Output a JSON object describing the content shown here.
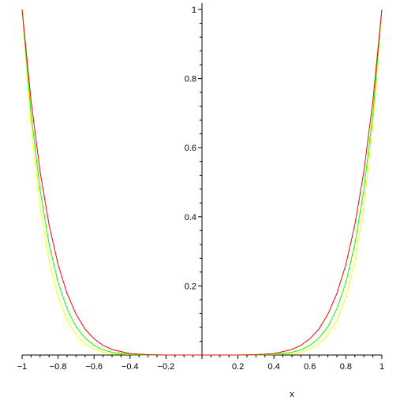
{
  "chart_data": {
    "type": "line",
    "title": "",
    "xlabel": "x",
    "ylabel": "",
    "xlim": [
      -1,
      1
    ],
    "ylim": [
      0,
      1
    ],
    "grid": false,
    "legend": "none",
    "x_ticks": [
      -1,
      -0.8,
      -0.6,
      -0.4,
      -0.2,
      0.2,
      0.4,
      0.6,
      0.8,
      1
    ],
    "x_tick_labels": [
      "−1",
      "−0.8",
      "−0.6",
      "−0.4",
      "−0.2",
      "0.2",
      "0.4",
      "0.6",
      "0.8",
      "1"
    ],
    "y_ticks": [
      0.2,
      0.4,
      0.6,
      0.8,
      1
    ],
    "y_tick_labels": [
      "0.2",
      "0.4",
      "0.6",
      "0.8",
      "1"
    ],
    "x": [
      -1.0,
      -0.95,
      -0.9,
      -0.85,
      -0.8,
      -0.75,
      -0.7,
      -0.65,
      -0.6,
      -0.55,
      -0.5,
      -0.4,
      -0.3,
      -0.2,
      -0.1,
      0.0,
      0.1,
      0.2,
      0.3,
      0.4,
      0.5,
      0.55,
      0.6,
      0.65,
      0.7,
      0.75,
      0.8,
      0.85,
      0.9,
      0.95,
      1.0
    ],
    "series": [
      {
        "color": "#ff0000",
        "values": [
          1.0,
          0.735,
          0.531,
          0.377,
          0.262,
          0.178,
          0.118,
          0.075,
          0.047,
          0.028,
          0.016,
          0.004,
          0.001,
          0.0,
          0.0,
          0.0,
          0.0,
          0.0,
          0.001,
          0.004,
          0.016,
          0.028,
          0.047,
          0.075,
          0.118,
          0.178,
          0.262,
          0.377,
          0.531,
          0.735,
          1.0
        ]
      },
      {
        "color": "#00ff00",
        "values": [
          1.0,
          0.698,
          0.478,
          0.321,
          0.21,
          0.134,
          0.082,
          0.049,
          0.028,
          0.015,
          0.008,
          0.002,
          0.0,
          0.0,
          0.0,
          0.0,
          0.0,
          0.0,
          0.0,
          0.002,
          0.008,
          0.015,
          0.028,
          0.049,
          0.082,
          0.134,
          0.21,
          0.321,
          0.478,
          0.698,
          1.0
        ]
      },
      {
        "color": "#ffff00",
        "values": [
          1.0,
          0.663,
          0.43,
          0.272,
          0.168,
          0.1,
          0.058,
          0.032,
          0.017,
          0.008,
          0.004,
          0.001,
          0.0,
          0.0,
          0.0,
          0.0,
          0.0,
          0.0,
          0.0,
          0.001,
          0.004,
          0.008,
          0.017,
          0.032,
          0.058,
          0.1,
          0.168,
          0.272,
          0.43,
          0.663,
          1.0
        ]
      }
    ]
  }
}
